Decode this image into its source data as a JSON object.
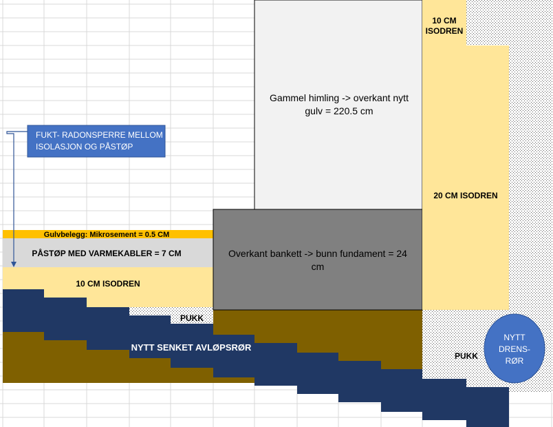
{
  "labels": {
    "gammel_himling_line1": "Gammel himling -> overkant nytt",
    "gammel_himling_line2": "gulv = 220.5 cm",
    "isodren_10_top_line1": "10 CM",
    "isodren_10_top_line2": "ISODREN",
    "isodren_20": "20 CM ISODREN",
    "fukt_line1": "FUKT- RADONSPERRE MELLOM",
    "fukt_line2": "ISOLASJON OG PÅSTØP",
    "gulvbelegg": "Gulvbelegg: Mikrosement = 0.5 CM",
    "pastop": "PÅSTØP MED VARMEKABLER = 7 CM",
    "bankett_line1": "Overkant bankett -> bunn fundament = 24",
    "bankett_line2": "cm",
    "isodren_10_floor": "10 CM ISODREN",
    "pukk_left": "PUKK",
    "avlop": "NYTT SENKET AVLØPSRØR",
    "pukk_right": "PUKK",
    "drens_line1": "NYTT",
    "drens_line2": "DRENS-",
    "drens_line3": "RØR"
  },
  "colors": {
    "navy": "#203864",
    "brown": "#7f6000",
    "light_yellow": "#ffe699",
    "gold": "#ffc000",
    "light_gray": "#d9d9d9",
    "very_light_gray": "#f2f2f2",
    "dark_gray": "#808080",
    "blue": "#4472c4",
    "grid": "#d9d9d9"
  }
}
